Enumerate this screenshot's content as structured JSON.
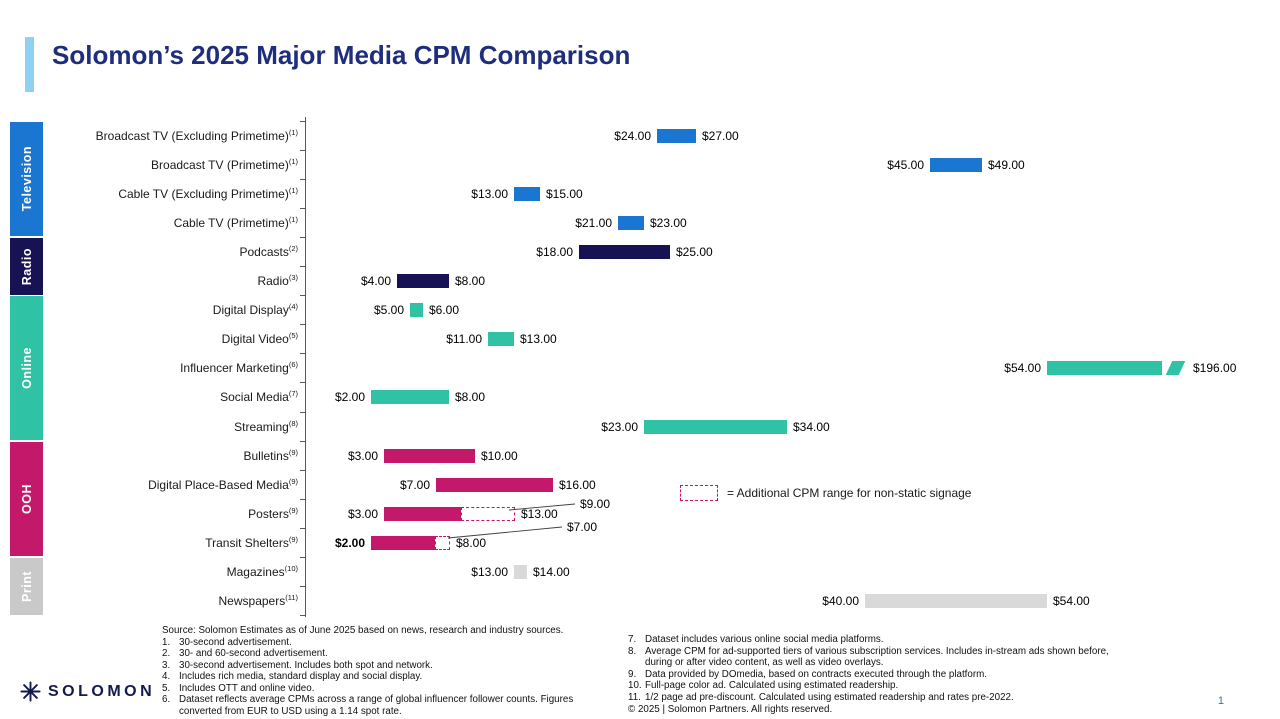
{
  "slide": {
    "title": "Solomon’s 2025 Major Media CPM Comparison",
    "page_number": "1",
    "logo": {
      "text": "SOLOMON",
      "icon": "starburst-icon"
    }
  },
  "colors": {
    "title": "#1f2d7d",
    "accent_bar": "#8ed1f2",
    "axis": "#595959",
    "page_number": "#2e74b5"
  },
  "chart_data": {
    "type": "range-bar",
    "title": "Solomon’s 2025 Major Media CPM Comparison",
    "value_format": "USD CPM",
    "x_min": 0,
    "groups": [
      {
        "name": "Television",
        "color": "#1b76d2"
      },
      {
        "name": "Radio",
        "color": "#171254"
      },
      {
        "name": "Online",
        "color": "#2fc2a5"
      },
      {
        "name": "OOH",
        "color": "#c4186b"
      },
      {
        "name": "Print",
        "color": "#c9c9c9",
        "bar_color": "#d9d9d9"
      }
    ],
    "rows": [
      {
        "label": "Broadcast TV (Excluding Primetime)",
        "footnote": "(1)",
        "group": "Television",
        "min": 24,
        "max": 27,
        "min_label": "$24.00",
        "max_label": "$27.00"
      },
      {
        "label": "Broadcast TV (Primetime)",
        "footnote": "(1)",
        "group": "Television",
        "min": 45,
        "max": 49,
        "min_label": "$45.00",
        "max_label": "$49.00"
      },
      {
        "label": "Cable TV (Excluding Primetime)",
        "footnote": "(1)",
        "group": "Television",
        "min": 13,
        "max": 15,
        "min_label": "$13.00",
        "max_label": "$15.00"
      },
      {
        "label": "Cable TV (Primetime)",
        "footnote": "(1)",
        "group": "Television",
        "min": 21,
        "max": 23,
        "min_label": "$21.00",
        "max_label": "$23.00"
      },
      {
        "label": "Podcasts",
        "footnote": "(2)",
        "group": "Radio",
        "min": 18,
        "max": 25,
        "min_label": "$18.00",
        "max_label": "$25.00"
      },
      {
        "label": "Radio",
        "footnote": "(3)",
        "group": "Radio",
        "min": 4,
        "max": 8,
        "min_label": "$4.00",
        "max_label": "$8.00"
      },
      {
        "label": "Digital Display",
        "footnote": "(4)",
        "group": "Online",
        "min": 5,
        "max": 6,
        "min_label": "$5.00",
        "max_label": "$6.00"
      },
      {
        "label": "Digital Video",
        "footnote": "(5)",
        "group": "Online",
        "min": 11,
        "max": 13,
        "min_label": "$11.00",
        "max_label": "$13.00"
      },
      {
        "label": "Influencer Marketing",
        "footnote": "(6)",
        "group": "Online",
        "min": 54,
        "max": 196,
        "min_label": "$54.00",
        "max_label": "$196.00",
        "axis_break": true
      },
      {
        "label": "Social Media",
        "footnote": "(7)",
        "group": "Online",
        "min": 2,
        "max": 8,
        "min_label": "$2.00",
        "max_label": "$8.00"
      },
      {
        "label": "Streaming",
        "footnote": "(8)",
        "group": "Online",
        "min": 23,
        "max": 34,
        "min_label": "$23.00",
        "max_label": "$34.00"
      },
      {
        "label": "Bulletins",
        "footnote": "(9)",
        "group": "OOH",
        "min": 3,
        "max": 10,
        "min_label": "$3.00",
        "max_label": "$10.00"
      },
      {
        "label": "Digital Place-Based Media",
        "footnote": "(9)",
        "group": "OOH",
        "min": 7,
        "max": 16,
        "min_label": "$7.00",
        "max_label": "$16.00"
      },
      {
        "label": "Posters",
        "footnote": "(9)",
        "group": "OOH",
        "min": 3,
        "max": 13,
        "min_label": "$3.00",
        "max_label": "$13.00",
        "dashed_from": 9,
        "dashed_from_label": "$9.00"
      },
      {
        "label": "Transit Shelters",
        "footnote": "(9)",
        "group": "OOH",
        "min": 2,
        "max": 8,
        "min_label": "$2.00",
        "max_label": "$8.00",
        "dashed_from": 7,
        "dashed_from_label": "$7.00",
        "min_label_bold": true
      },
      {
        "label": "Magazines",
        "footnote": "(10)",
        "group": "Print",
        "min": 13,
        "max": 14,
        "min_label": "$13.00",
        "max_label": "$14.00"
      },
      {
        "label": "Newspapers",
        "footnote": "(11)",
        "group": "Print",
        "min": 40,
        "max": 54,
        "min_label": "$40.00",
        "max_label": "$54.00"
      }
    ],
    "legend": {
      "symbol": "dashed-box",
      "color": "#c4186b",
      "text": "= Additional CPM range for non-static signage"
    },
    "callouts": [
      {
        "text": "$9.00",
        "target_row": "Posters"
      },
      {
        "text": "$7.00",
        "target_row": "Transit Shelters"
      }
    ]
  },
  "footnotes": {
    "source": "Source: Solomon Estimates as of June 2025 based on news, research and industry sources.",
    "left": [
      {
        "num": "1.",
        "text": "30-second advertisement."
      },
      {
        "num": "2.",
        "text": "30- and 60-second advertisement."
      },
      {
        "num": "3.",
        "text": "30-second advertisement. Includes both spot and network."
      },
      {
        "num": "4.",
        "text": "Includes rich media, standard display and social display."
      },
      {
        "num": "5.",
        "text": "Includes OTT and online video."
      },
      {
        "num": "6.",
        "text": "Dataset reflects average CPMs across a range of global influencer follower counts. Figures converted from EUR to USD using a 1.14 spot rate."
      }
    ],
    "right": [
      {
        "num": "7.",
        "text": "Dataset includes various online social media platforms."
      },
      {
        "num": "8.",
        "text": "Average CPM for ad-supported tiers of various subscription services. Includes in-stream ads shown before, during or after video content, as well as video overlays."
      },
      {
        "num": "9.",
        "text": "Data provided by DOmedia, based on contracts executed through the platform."
      },
      {
        "num": "10.",
        "text": "Full-page color ad. Calculated using estimated readership."
      },
      {
        "num": "11.",
        "text": "1/2 page ad pre-discount. Calculated using estimated readership and rates pre-2022."
      }
    ],
    "copyright": "© 2025 | Solomon Partners. All rights reserved."
  }
}
